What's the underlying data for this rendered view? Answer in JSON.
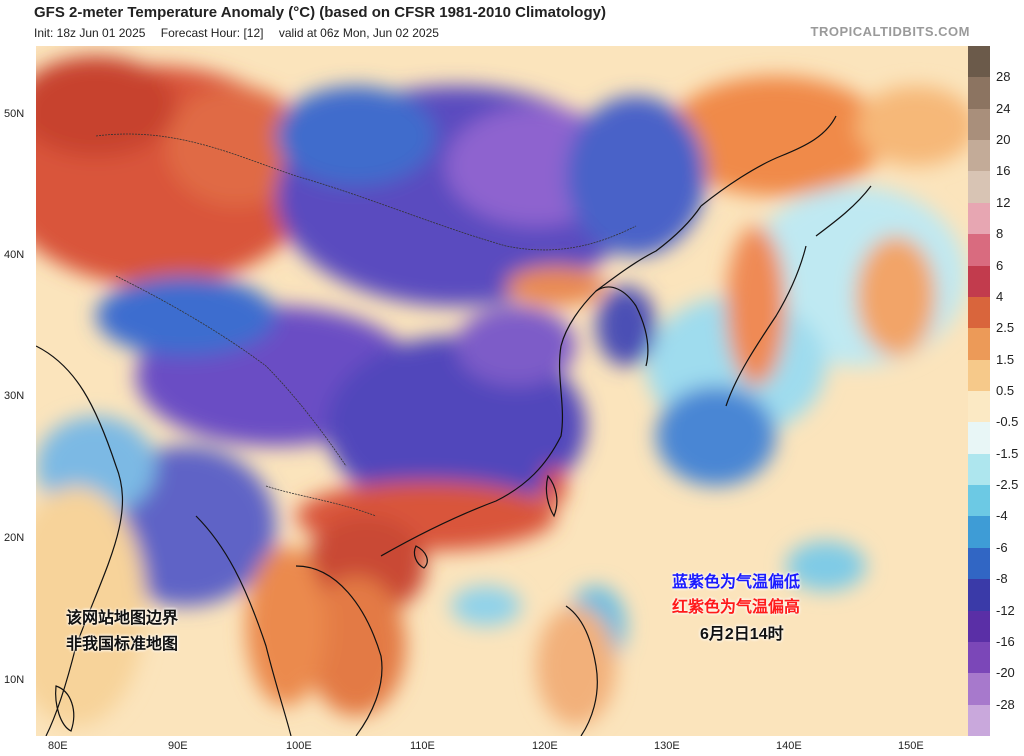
{
  "header": {
    "title": "GFS 2-meter Temperature Anomaly (°C) (based on CFSR 1981-2010 Climatology)",
    "init": "Init: 18z Jun 01 2025",
    "forecast_hour": "Forecast Hour: [12]",
    "valid": "valid at 06z Mon, Jun 02 2025",
    "brand": "TROPICALTIDBITS.COM"
  },
  "axes": {
    "lat_labels": [
      "50N",
      "40N",
      "30N",
      "20N",
      "10N"
    ],
    "lon_labels": [
      "80E",
      "90E",
      "100E",
      "110E",
      "120E",
      "130E",
      "140E",
      "150E"
    ]
  },
  "colorbar": {
    "labels": [
      "28",
      "24",
      "20",
      "16",
      "12",
      "8",
      "6",
      "4",
      "2.5",
      "1.5",
      "0.5",
      "-0.5",
      "-1.5",
      "-2.5",
      "-4",
      "-6",
      "-8",
      "-12",
      "-16",
      "-20",
      "-28"
    ],
    "colors": [
      "#6b5a4a",
      "#8c7461",
      "#a98f7b",
      "#c3ab98",
      "#d8c4b4",
      "#e7a6b2",
      "#d96b7f",
      "#c23b4d",
      "#d9653c",
      "#ec9a58",
      "#f6c98a",
      "#fbe9c4",
      "#e8f6f6",
      "#aee6ee",
      "#6cc9e4",
      "#3e9cd6",
      "#3166c4",
      "#3a3aa8",
      "#5a2fa6",
      "#7b47b8",
      "#a779cc",
      "#c9a8dc"
    ]
  },
  "annotations": {
    "blue_note": "蓝紫色为气温偏低",
    "red_note": "红紫色为气温偏高",
    "time_note": "6月2日14时",
    "disclaimer_line1": "该网站地图边界",
    "disclaimer_line2": "非我国标准地图"
  }
}
